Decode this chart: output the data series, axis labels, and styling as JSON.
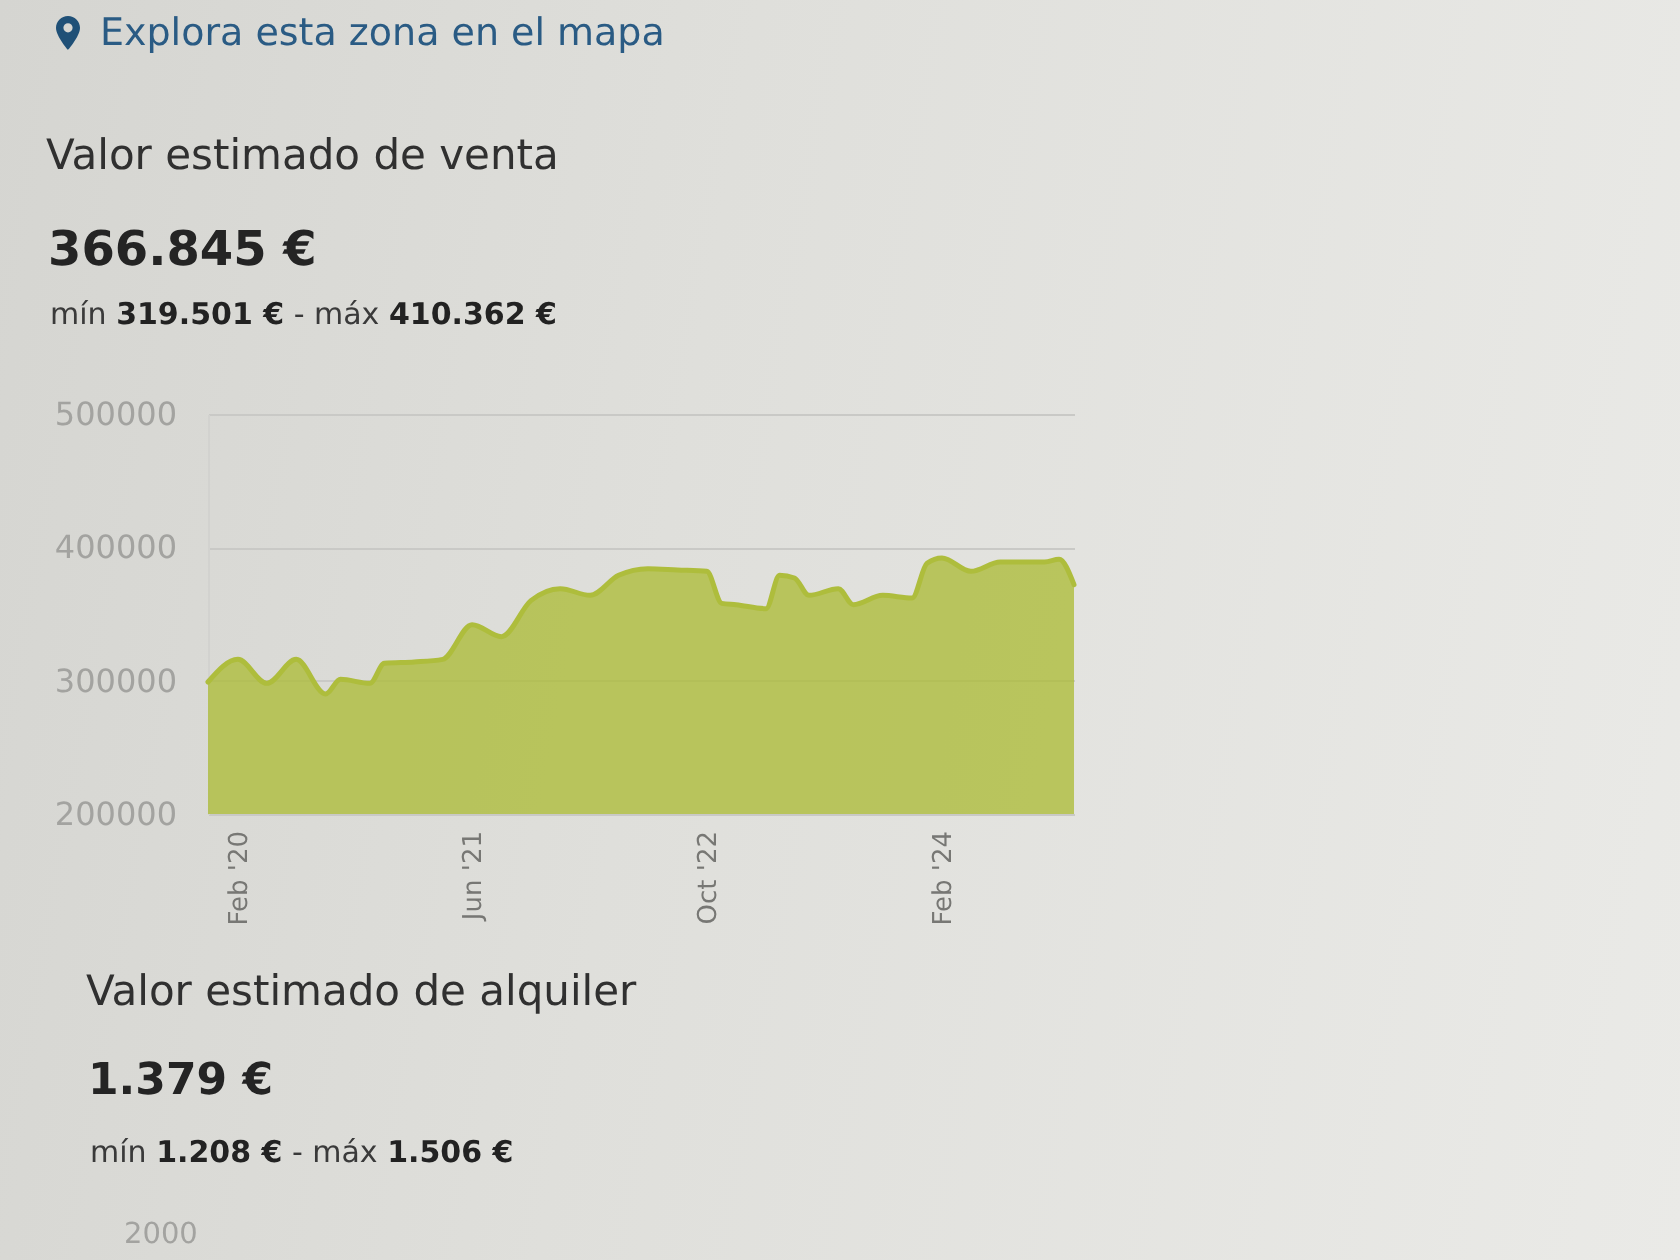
{
  "chart_data": [
    {
      "type": "area",
      "title": "Valor estimado de venta",
      "subtitle": "366.845 €",
      "annotations": [
        "Explora esta zona en el mapa",
        "mín 319.501 € - máx 410.362 €"
      ],
      "x": [
        "2019-12",
        "2020-02",
        "2020-04",
        "2020-06",
        "2020-08",
        "2020-09",
        "2020-11",
        "2020-12",
        "2021-02",
        "2021-04",
        "2021-06",
        "2021-08",
        "2021-10",
        "2021-12",
        "2022-02",
        "2022-04",
        "2022-06",
        "2022-08",
        "2022-10",
        "2022-11",
        "2022-12",
        "2023-02",
        "2023-03",
        "2023-04",
        "2023-05",
        "2023-07",
        "2023-08",
        "2023-10",
        "2023-12",
        "2024-01",
        "2024-02",
        "2024-04",
        "2024-06",
        "2024-07",
        "2024-09",
        "2024-10",
        "2024-11"
      ],
      "series": [
        {
          "color": "#aebd3c",
          "values": [
            299000,
            316000,
            298000,
            316000,
            290000,
            301000,
            298000,
            313000,
            314000,
            316000,
            342000,
            333000,
            360000,
            369000,
            364000,
            379000,
            384000,
            383000,
            382000,
            358000,
            357000,
            354000,
            379000,
            377000,
            364000,
            369000,
            357000,
            364000,
            362000,
            388000,
            392000,
            382000,
            389000,
            389000,
            389000,
            391000,
            372000
          ]
        }
      ],
      "xlim": [
        "2019-12",
        "2024-11"
      ],
      "xticks": [
        {
          "value": "2020-02",
          "label": "Feb '20"
        },
        {
          "value": "2021-06",
          "label": "Jun '21"
        },
        {
          "value": "2022-10",
          "label": "Oct '22"
        },
        {
          "value": "2024-02",
          "label": "Feb '24"
        }
      ],
      "ylim": [
        200000,
        500000
      ],
      "yticks": [
        200000,
        300000,
        400000,
        500000
      ],
      "grid": "y"
    },
    {
      "type": "other",
      "title": "Valor estimado de alquiler",
      "subtitle": "1.379 €",
      "annotations": [
        "mín 1.208 € - máx 1.506 €",
        "2000"
      ]
    }
  ]
}
